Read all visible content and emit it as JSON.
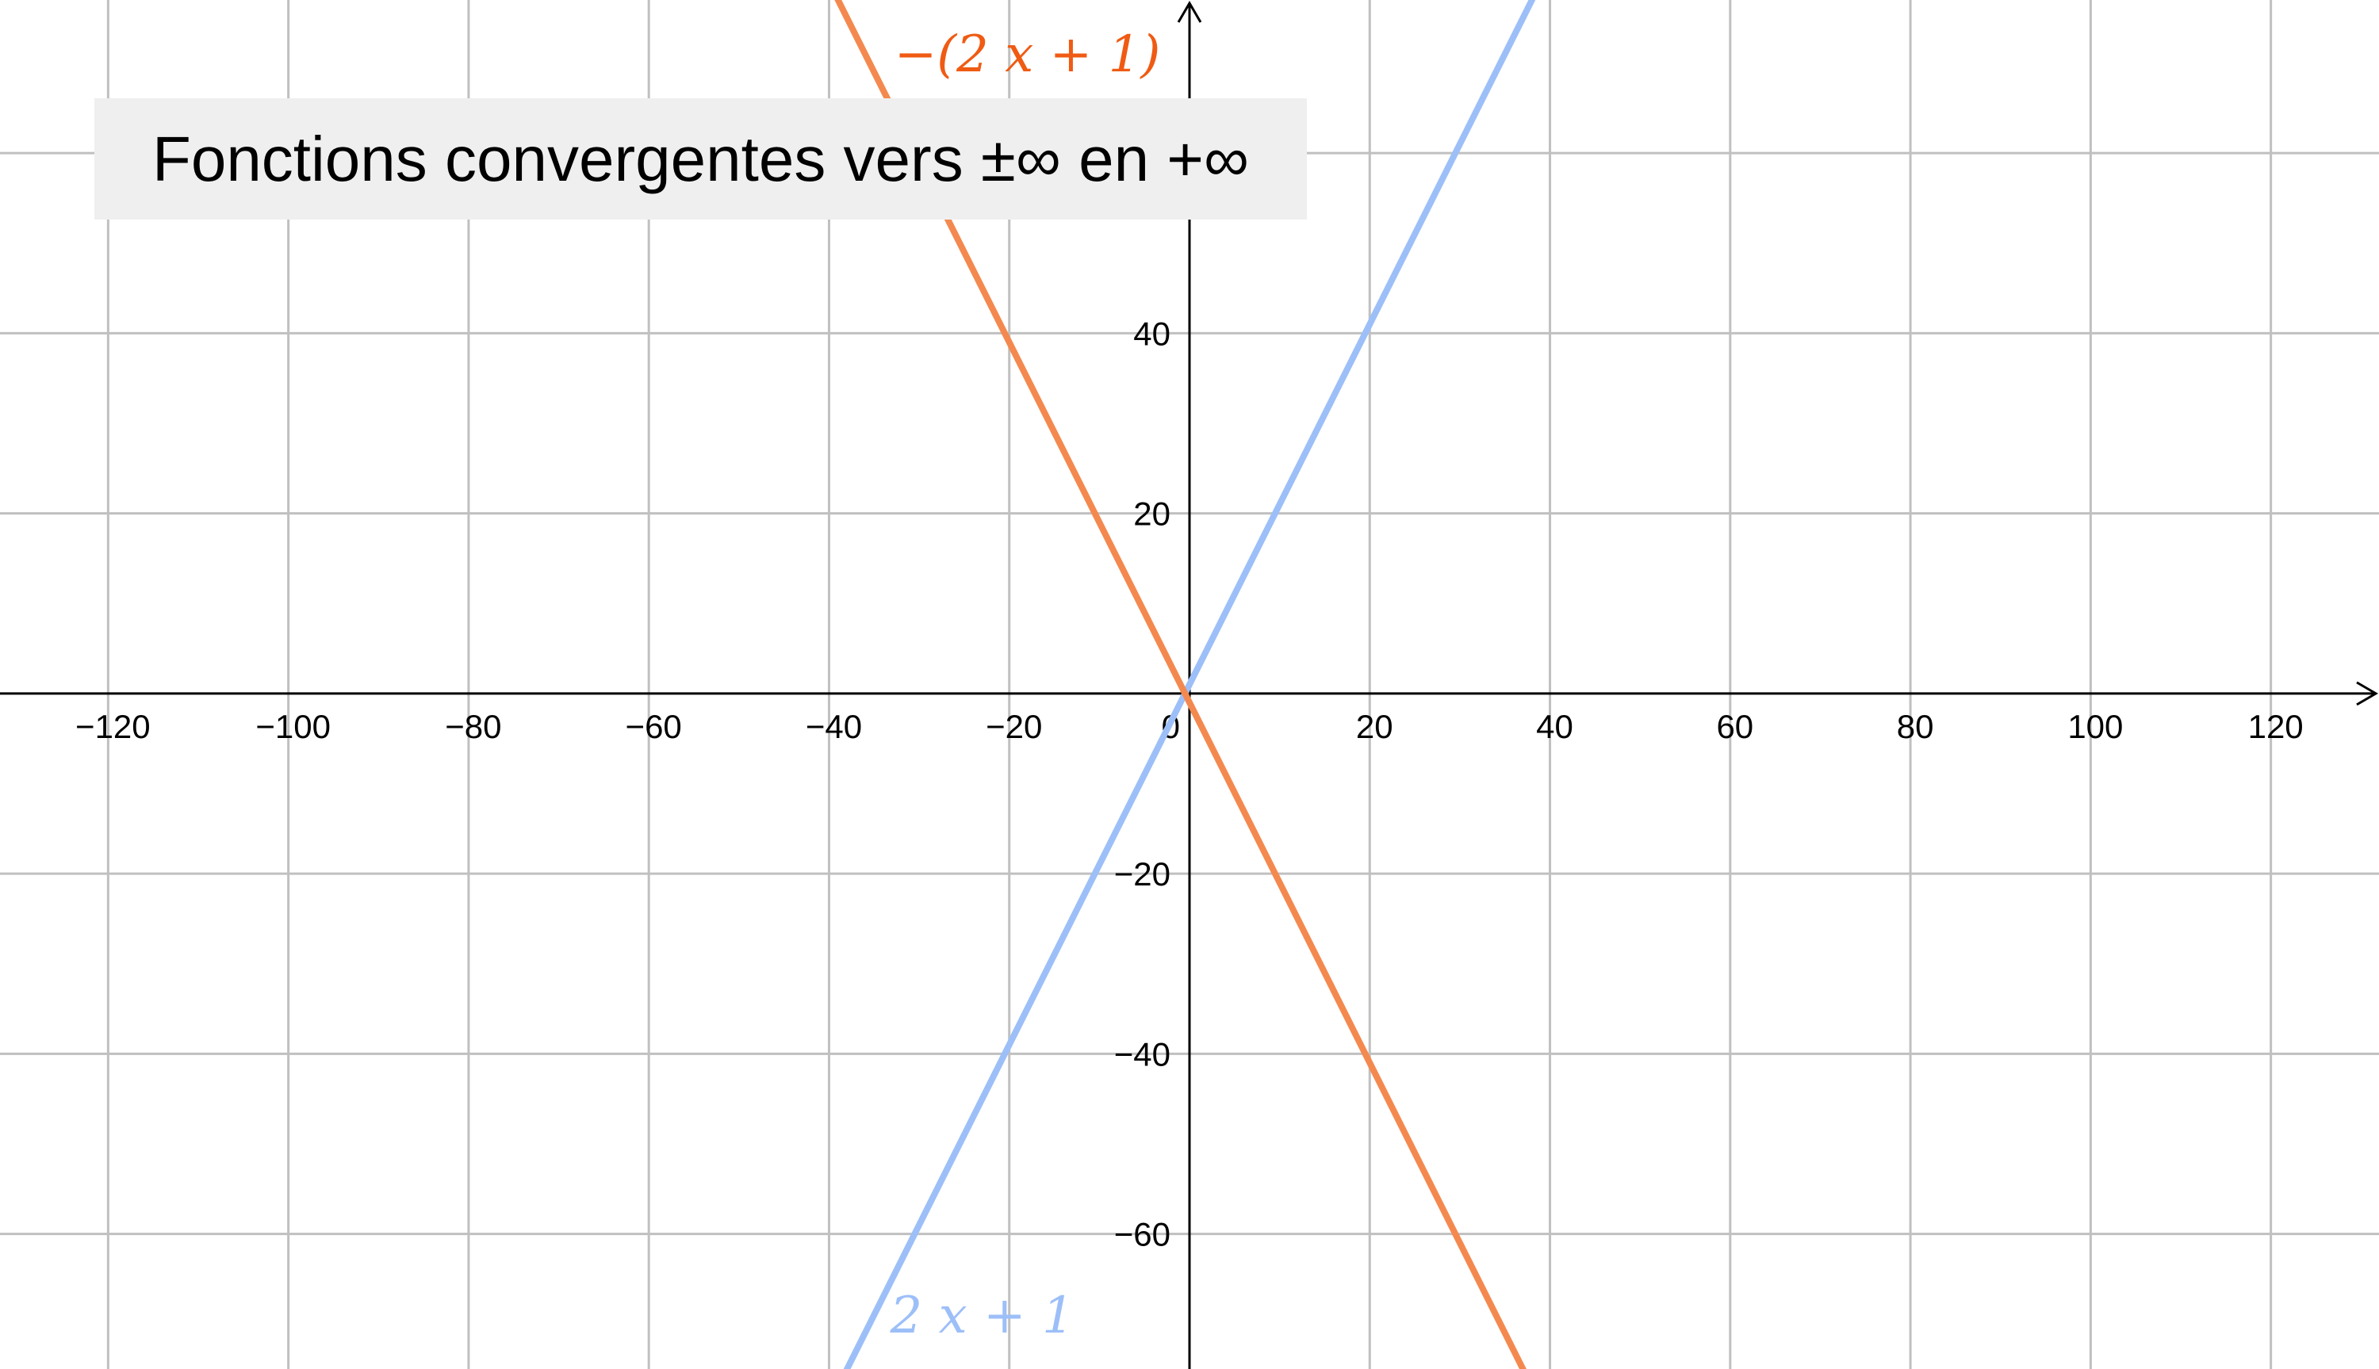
{
  "chart_data": {
    "type": "line",
    "title": "Fonctions convergentes vers ±∞ en +∞",
    "xlim": [
      -132,
      132
    ],
    "ylim": [
      -75,
      77
    ],
    "grid": true,
    "x_ticks": [
      -120,
      -100,
      -80,
      -60,
      -40,
      -20,
      0,
      20,
      40,
      60,
      80,
      100,
      120
    ],
    "y_ticks": [
      -60,
      -40,
      -20,
      20,
      40
    ],
    "x_tick_labels": [
      "−120",
      "−100",
      "−80",
      "−60",
      "−40",
      "−20",
      "0",
      "20",
      "40",
      "60",
      "80",
      "100",
      "120"
    ],
    "y_tick_labels": [
      "−60",
      "−40",
      "−20",
      "20",
      "40"
    ],
    "series": [
      {
        "name": "2 x + 1",
        "color": "#9dbff8",
        "x": [
          -40,
          40
        ],
        "y": [
          -79,
          81
        ]
      },
      {
        "name": "−(2 x + 1)",
        "color": "#f4894f",
        "label_color": "#ef5b13",
        "x": [
          -40,
          40
        ],
        "y": [
          79,
          -81
        ]
      }
    ]
  }
}
